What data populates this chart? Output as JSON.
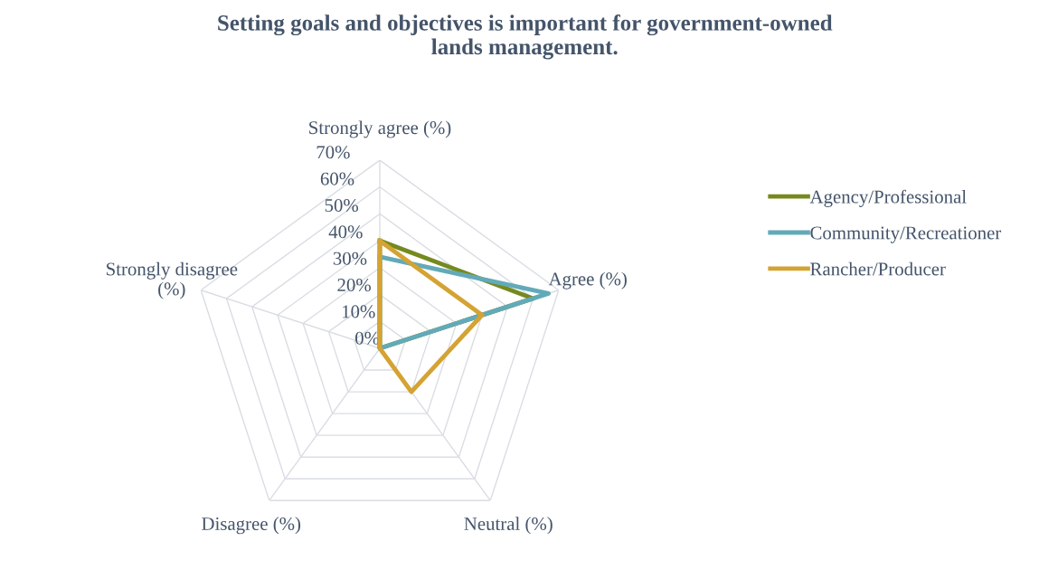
{
  "chart_data": {
    "type": "radar",
    "title": "Setting goals and objectives is important for government-owned\nlands management.",
    "categories": [
      "Strongly agree (%)",
      "Agree (%)",
      "Neutral (%)",
      "Disagree (%)",
      "Strongly disagree\n(%)"
    ],
    "series": [
      {
        "name": "Agency/Professional",
        "color": "#76891f",
        "values": [
          40,
          60,
          0,
          0,
          0
        ]
      },
      {
        "name": "Community/Recreationer",
        "color": "#62aab8",
        "values": [
          34,
          66,
          0,
          0,
          0
        ]
      },
      {
        "name": "Rancher/Producer",
        "color": "#d4a333",
        "values": [
          40,
          40,
          20,
          0,
          0
        ]
      }
    ],
    "ylim": [
      0,
      70
    ],
    "yticks": [
      {
        "value": 0,
        "label": "0%"
      },
      {
        "value": 10,
        "label": "10%"
      },
      {
        "value": 20,
        "label": "20%"
      },
      {
        "value": 30,
        "label": "30%"
      },
      {
        "value": 40,
        "label": "40%"
      },
      {
        "value": 50,
        "label": "50%"
      },
      {
        "value": 60,
        "label": "60%"
      },
      {
        "value": 70,
        "label": "70%"
      }
    ],
    "grid": true,
    "legend": "right",
    "marker": "none",
    "line_style": "solid"
  }
}
